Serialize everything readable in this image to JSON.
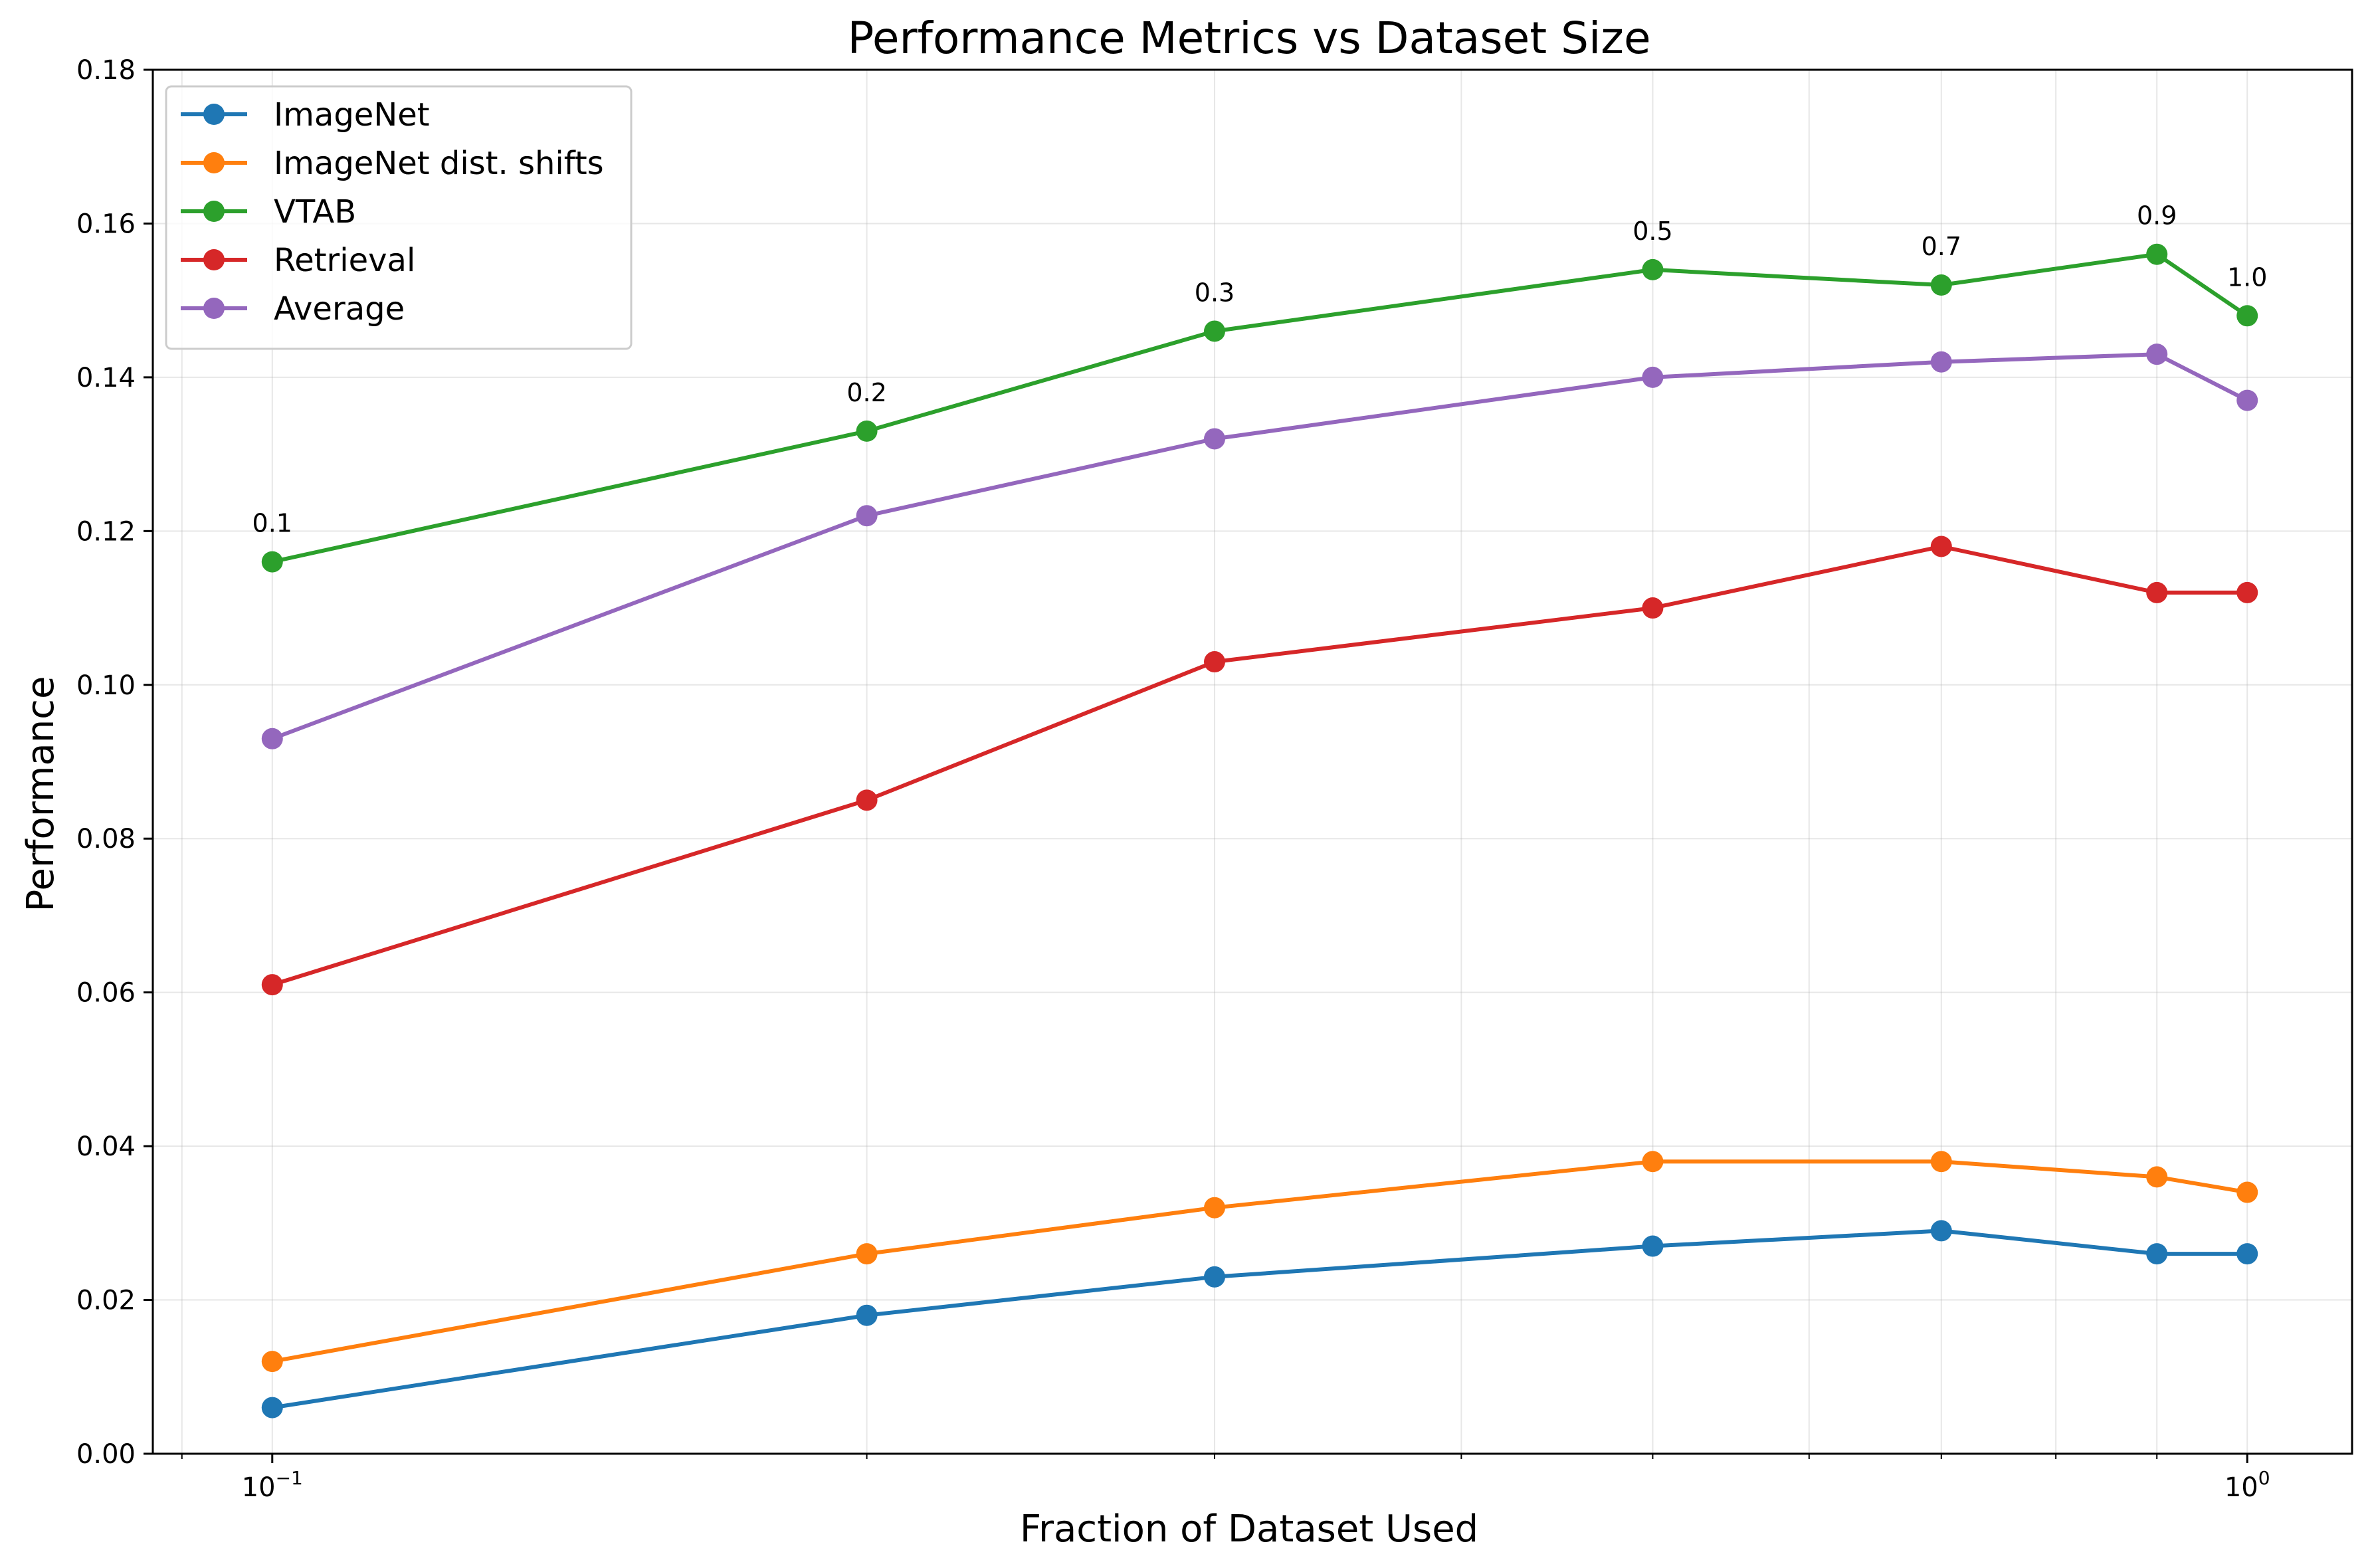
{
  "chart_data": {
    "type": "line",
    "title": "Performance Metrics vs Dataset Size",
    "xlabel": "Fraction of Dataset Used",
    "ylabel": "Performance",
    "xscale": "log",
    "x": [
      0.1,
      0.2,
      0.3,
      0.5,
      0.7,
      0.9,
      1.0
    ],
    "xlim": [
      0.087,
      1.13
    ],
    "ylim": [
      0,
      0.18
    ],
    "yticks": [
      "0.00",
      "0.02",
      "0.04",
      "0.06",
      "0.08",
      "0.10",
      "0.12",
      "0.14",
      "0.16",
      "0.18"
    ],
    "xticks": [
      {
        "value": 0.1,
        "base": "10",
        "exp": "−1"
      },
      {
        "value": 1.0,
        "base": "10",
        "exp": "0"
      }
    ],
    "grid": true,
    "legend_position": "upper-left",
    "series": [
      {
        "name": "ImageNet",
        "color": "#1f77b4",
        "values": [
          0.006,
          0.018,
          0.023,
          0.027,
          0.029,
          0.026,
          0.026
        ]
      },
      {
        "name": "ImageNet dist. shifts",
        "color": "#ff7f0e",
        "values": [
          0.012,
          0.026,
          0.032,
          0.038,
          0.038,
          0.036,
          0.034
        ]
      },
      {
        "name": "VTAB",
        "color": "#2ca02c",
        "values": [
          0.116,
          0.133,
          0.146,
          0.154,
          0.152,
          0.156,
          0.148
        ]
      },
      {
        "name": "Retrieval",
        "color": "#d62728",
        "values": [
          0.061,
          0.085,
          0.103,
          0.11,
          0.118,
          0.112,
          0.112
        ]
      },
      {
        "name": "Average",
        "color": "#9467bd",
        "values": [
          0.093,
          0.122,
          0.132,
          0.14,
          0.142,
          0.143,
          0.137
        ]
      }
    ],
    "annotations": {
      "series": "VTAB",
      "labels": [
        "0.1",
        "0.2",
        "0.3",
        "0.5",
        "0.7",
        "0.9",
        "1.0"
      ]
    }
  }
}
